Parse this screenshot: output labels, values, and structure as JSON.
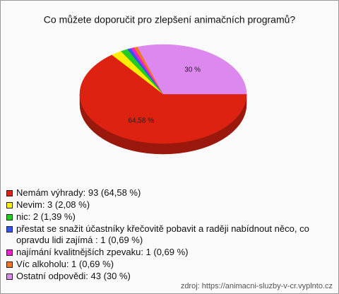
{
  "chart_data": {
    "type": "pie",
    "title": "Co můžete doporučit pro zlepšení animačních programů?",
    "categories": [
      "Nemám výhrady: 93 (64,58 %)",
      "Nevim: 3 (2,08 %)",
      "nic: 2 (1,39 %)",
      "přestat se snažit účastníky křečovitě pobavit a raději nabídnout něco, co opravdu lidi zajímá : 1 (0,69 %)",
      "najímání kvalitnějších zpevaku: 1 (0,69 %)",
      "Víc alkoholu: 1 (0,69 %)",
      "Ostatní odpovědi: 43 (30 %)"
    ],
    "values": [
      64.58,
      2.08,
      1.39,
      0.69,
      0.69,
      0.69,
      30
    ],
    "value_labels": [
      "64,58 %",
      null,
      null,
      null,
      null,
      null,
      "30 %"
    ],
    "colors": [
      "#dd2211",
      "#ffee00",
      "#22cc22",
      "#3355ee",
      "#ee22cc",
      "#ee7722",
      "#dd88ee"
    ],
    "source": "zdroj: https://animacni-sluzby-v-cr.vyplnto.cz"
  }
}
